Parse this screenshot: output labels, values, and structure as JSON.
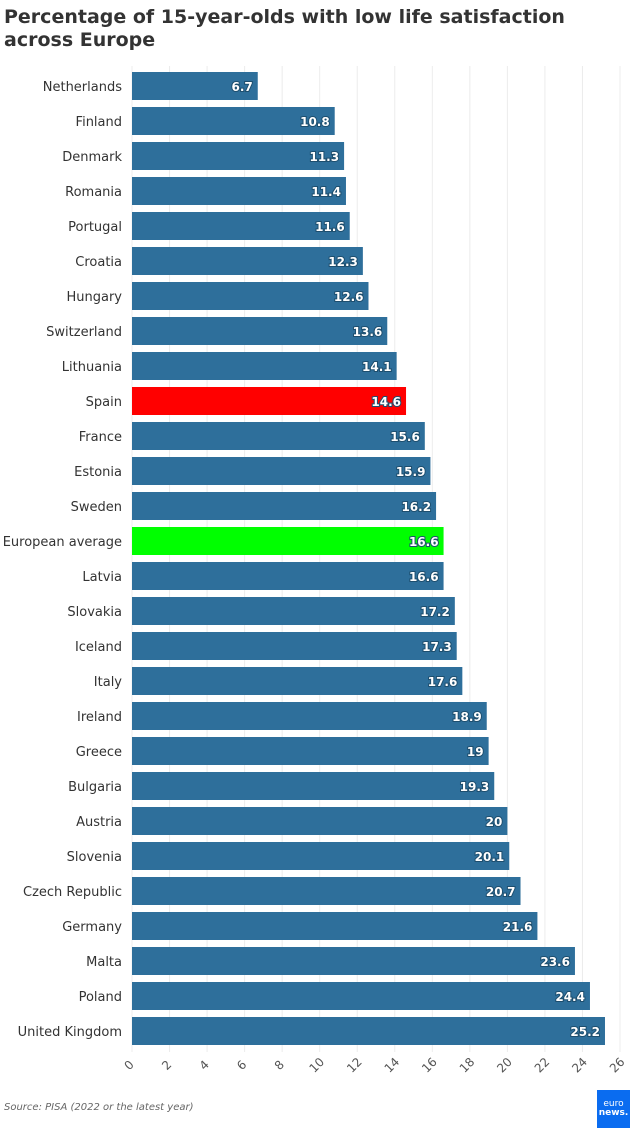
{
  "chart_data": {
    "type": "bar",
    "orientation": "horizontal",
    "title": "Percentage of 15-year-olds with low life satisfaction across Europe",
    "categories": [
      "Netherlands",
      "Finland",
      "Denmark",
      "Romania",
      "Portugal",
      "Croatia",
      "Hungary",
      "Switzerland",
      "Lithuania",
      "Spain",
      "France",
      "Estonia",
      "Sweden",
      "European average",
      "Latvia",
      "Slovakia",
      "Iceland",
      "Italy",
      "Ireland",
      "Greece",
      "Bulgaria",
      "Austria",
      "Slovenia",
      "Czech Republic",
      "Germany",
      "Malta",
      "Poland",
      "United Kingdom"
    ],
    "values": [
      6.7,
      10.8,
      11.3,
      11.4,
      11.6,
      12.3,
      12.6,
      13.6,
      14.1,
      14.6,
      15.6,
      15.9,
      16.2,
      16.6,
      16.6,
      17.2,
      17.3,
      17.6,
      18.9,
      19,
      19.3,
      20,
      20.1,
      20.7,
      21.6,
      23.6,
      24.4,
      25.2
    ],
    "xlim": [
      0,
      26
    ],
    "xticks": [
      0,
      2,
      4,
      6,
      8,
      10,
      12,
      14,
      16,
      18,
      20,
      22,
      24,
      26
    ],
    "grid": true,
    "colors": {
      "default": "#2e6f9b",
      "Spain": "#ff0000",
      "European average": "#00ff00"
    }
  },
  "source": "Source: PISA (2022 or the latest year)",
  "logo": {
    "line1": "euro",
    "line2": "news."
  }
}
